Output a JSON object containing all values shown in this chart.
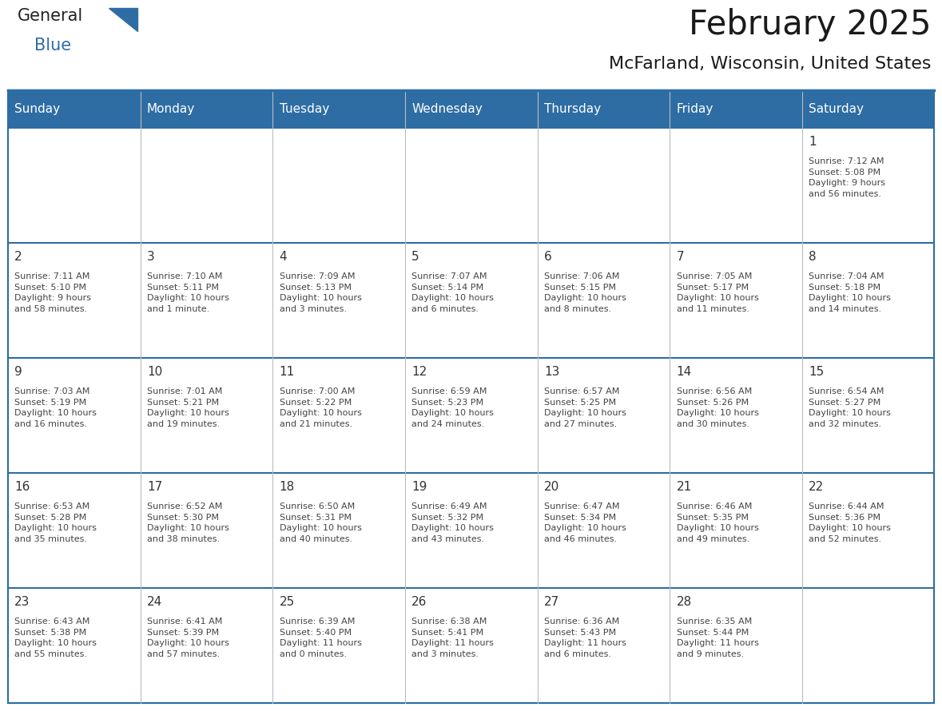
{
  "title": "February 2025",
  "subtitle": "McFarland, Wisconsin, United States",
  "header_bg": "#2E6DA4",
  "header_text_color": "#FFFFFF",
  "cell_bg": "#FFFFFF",
  "border_color": "#2E6DA4",
  "title_color": "#1a1a1a",
  "subtitle_color": "#1a1a1a",
  "day_headers": [
    "Sunday",
    "Monday",
    "Tuesday",
    "Wednesday",
    "Thursday",
    "Friday",
    "Saturday"
  ],
  "weeks": [
    [
      {
        "day": null,
        "info": null
      },
      {
        "day": null,
        "info": null
      },
      {
        "day": null,
        "info": null
      },
      {
        "day": null,
        "info": null
      },
      {
        "day": null,
        "info": null
      },
      {
        "day": null,
        "info": null
      },
      {
        "day": "1",
        "info": "Sunrise: 7:12 AM\nSunset: 5:08 PM\nDaylight: 9 hours\nand 56 minutes."
      }
    ],
    [
      {
        "day": "2",
        "info": "Sunrise: 7:11 AM\nSunset: 5:10 PM\nDaylight: 9 hours\nand 58 minutes."
      },
      {
        "day": "3",
        "info": "Sunrise: 7:10 AM\nSunset: 5:11 PM\nDaylight: 10 hours\nand 1 minute."
      },
      {
        "day": "4",
        "info": "Sunrise: 7:09 AM\nSunset: 5:13 PM\nDaylight: 10 hours\nand 3 minutes."
      },
      {
        "day": "5",
        "info": "Sunrise: 7:07 AM\nSunset: 5:14 PM\nDaylight: 10 hours\nand 6 minutes."
      },
      {
        "day": "6",
        "info": "Sunrise: 7:06 AM\nSunset: 5:15 PM\nDaylight: 10 hours\nand 8 minutes."
      },
      {
        "day": "7",
        "info": "Sunrise: 7:05 AM\nSunset: 5:17 PM\nDaylight: 10 hours\nand 11 minutes."
      },
      {
        "day": "8",
        "info": "Sunrise: 7:04 AM\nSunset: 5:18 PM\nDaylight: 10 hours\nand 14 minutes."
      }
    ],
    [
      {
        "day": "9",
        "info": "Sunrise: 7:03 AM\nSunset: 5:19 PM\nDaylight: 10 hours\nand 16 minutes."
      },
      {
        "day": "10",
        "info": "Sunrise: 7:01 AM\nSunset: 5:21 PM\nDaylight: 10 hours\nand 19 minutes."
      },
      {
        "day": "11",
        "info": "Sunrise: 7:00 AM\nSunset: 5:22 PM\nDaylight: 10 hours\nand 21 minutes."
      },
      {
        "day": "12",
        "info": "Sunrise: 6:59 AM\nSunset: 5:23 PM\nDaylight: 10 hours\nand 24 minutes."
      },
      {
        "day": "13",
        "info": "Sunrise: 6:57 AM\nSunset: 5:25 PM\nDaylight: 10 hours\nand 27 minutes."
      },
      {
        "day": "14",
        "info": "Sunrise: 6:56 AM\nSunset: 5:26 PM\nDaylight: 10 hours\nand 30 minutes."
      },
      {
        "day": "15",
        "info": "Sunrise: 6:54 AM\nSunset: 5:27 PM\nDaylight: 10 hours\nand 32 minutes."
      }
    ],
    [
      {
        "day": "16",
        "info": "Sunrise: 6:53 AM\nSunset: 5:28 PM\nDaylight: 10 hours\nand 35 minutes."
      },
      {
        "day": "17",
        "info": "Sunrise: 6:52 AM\nSunset: 5:30 PM\nDaylight: 10 hours\nand 38 minutes."
      },
      {
        "day": "18",
        "info": "Sunrise: 6:50 AM\nSunset: 5:31 PM\nDaylight: 10 hours\nand 40 minutes."
      },
      {
        "day": "19",
        "info": "Sunrise: 6:49 AM\nSunset: 5:32 PM\nDaylight: 10 hours\nand 43 minutes."
      },
      {
        "day": "20",
        "info": "Sunrise: 6:47 AM\nSunset: 5:34 PM\nDaylight: 10 hours\nand 46 minutes."
      },
      {
        "day": "21",
        "info": "Sunrise: 6:46 AM\nSunset: 5:35 PM\nDaylight: 10 hours\nand 49 minutes."
      },
      {
        "day": "22",
        "info": "Sunrise: 6:44 AM\nSunset: 5:36 PM\nDaylight: 10 hours\nand 52 minutes."
      }
    ],
    [
      {
        "day": "23",
        "info": "Sunrise: 6:43 AM\nSunset: 5:38 PM\nDaylight: 10 hours\nand 55 minutes."
      },
      {
        "day": "24",
        "info": "Sunrise: 6:41 AM\nSunset: 5:39 PM\nDaylight: 10 hours\nand 57 minutes."
      },
      {
        "day": "25",
        "info": "Sunrise: 6:39 AM\nSunset: 5:40 PM\nDaylight: 11 hours\nand 0 minutes."
      },
      {
        "day": "26",
        "info": "Sunrise: 6:38 AM\nSunset: 5:41 PM\nDaylight: 11 hours\nand 3 minutes."
      },
      {
        "day": "27",
        "info": "Sunrise: 6:36 AM\nSunset: 5:43 PM\nDaylight: 11 hours\nand 6 minutes."
      },
      {
        "day": "28",
        "info": "Sunrise: 6:35 AM\nSunset: 5:44 PM\nDaylight: 11 hours\nand 9 minutes."
      },
      {
        "day": null,
        "info": null
      }
    ]
  ]
}
